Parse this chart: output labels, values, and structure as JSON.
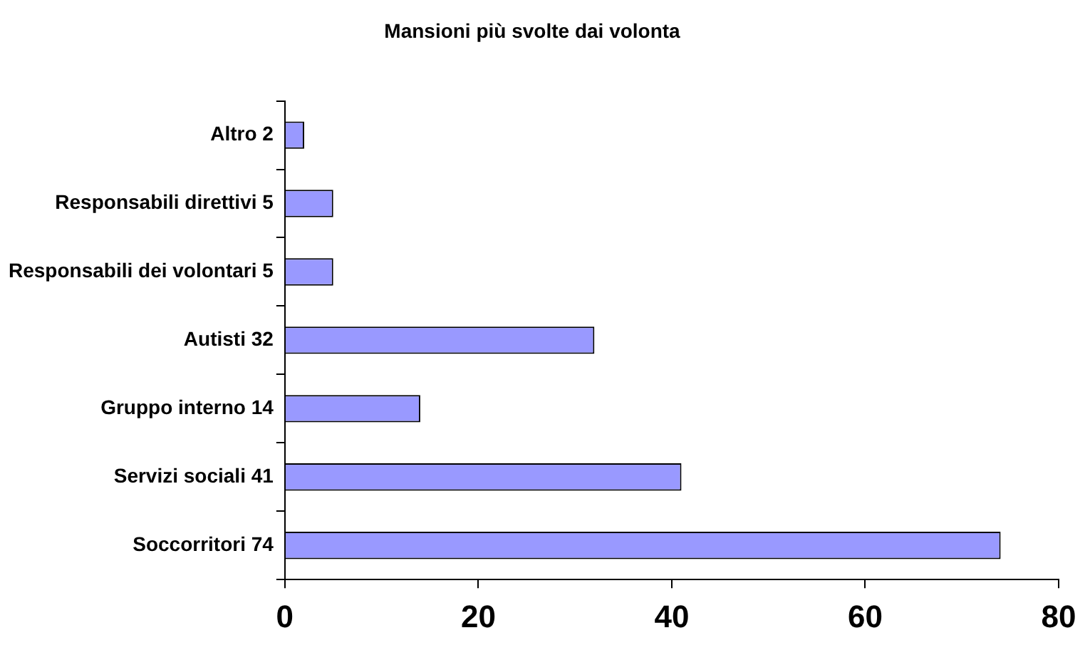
{
  "chart_data": {
    "type": "bar",
    "orientation": "horizontal",
    "title": "Mansioni più svolte dai volonta",
    "categories": [
      "Altro 2",
      "Responsabili direttivi 5",
      "Responsabili dei volontari 5",
      "Autisti 32",
      "Gruppo interno 14",
      "Servizi sociali 41",
      "Soccorritori 74"
    ],
    "values": [
      2,
      5,
      5,
      32,
      14,
      41,
      74
    ],
    "color": "#9999ff",
    "xlim": [
      0,
      80
    ],
    "xticks": [
      0,
      20,
      40,
      60,
      80
    ],
    "grid": false,
    "legend": false
  }
}
